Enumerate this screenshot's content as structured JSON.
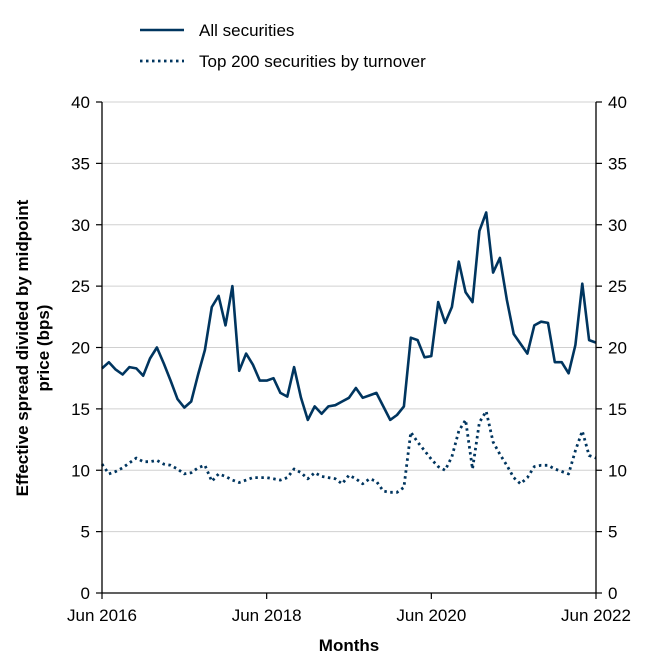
{
  "chart_data": {
    "type": "line",
    "title": "",
    "xlabel": "Months",
    "ylabel_lines": [
      "Effective spread divided by midpoint",
      "price (bps)"
    ],
    "x_ticks": [
      "Jun 2016",
      "Jun 2018",
      "Jun 2020",
      "Jun 2022"
    ],
    "x_range": [
      "Jun 2016",
      "Jun 2022"
    ],
    "ylim": [
      0,
      40
    ],
    "y_ticks": [
      "0",
      "5",
      "10",
      "15",
      "20",
      "25",
      "30",
      "35",
      "40"
    ],
    "grid": "horizontal",
    "legend_position": "top-left",
    "colors": {
      "series": "#00355f",
      "grid": "#d0d0d0",
      "axis": "#000000"
    },
    "series": [
      {
        "name": "All securities",
        "style": "solid",
        "values": [
          18.3,
          18.8,
          18.2,
          17.8,
          18.4,
          18.3,
          17.7,
          19.1,
          20.0,
          18.7,
          17.3,
          15.8,
          15.1,
          15.6,
          17.8,
          19.8,
          23.3,
          24.2,
          21.8,
          25.0,
          18.1,
          19.5,
          18.6,
          17.3,
          17.3,
          17.5,
          16.3,
          16.0,
          18.4,
          15.9,
          14.1,
          15.2,
          14.6,
          15.2,
          15.3,
          15.6,
          15.9,
          16.7,
          15.9,
          16.1,
          16.3,
          15.2,
          14.1,
          14.5,
          15.2,
          20.8,
          20.6,
          19.2,
          19.3,
          23.7,
          22.0,
          23.3,
          27.0,
          24.5,
          23.7,
          29.5,
          31.0,
          26.1,
          27.3,
          23.9,
          21.1,
          20.3,
          19.5,
          21.8,
          22.1,
          22.0,
          18.8,
          18.8,
          17.9,
          20.2,
          25.2,
          20.6,
          20.4
        ]
      },
      {
        "name": "Top 200 securities by turnover",
        "style": "dotted",
        "values": [
          10.5,
          9.7,
          9.9,
          10.2,
          10.6,
          11.0,
          10.7,
          10.7,
          10.8,
          10.5,
          10.4,
          10.1,
          9.7,
          9.8,
          10.2,
          10.4,
          9.1,
          9.7,
          9.5,
          9.2,
          9.0,
          9.2,
          9.4,
          9.4,
          9.4,
          9.3,
          9.2,
          9.4,
          10.1,
          9.8,
          9.3,
          9.8,
          9.5,
          9.4,
          9.3,
          8.9,
          9.6,
          9.3,
          8.9,
          9.3,
          9.1,
          8.3,
          8.2,
          8.2,
          8.6,
          13.1,
          12.3,
          11.6,
          10.9,
          10.3,
          10.0,
          11.1,
          13.2,
          14.1,
          10.1,
          13.9,
          14.8,
          12.3,
          11.3,
          10.4,
          9.4,
          8.9,
          9.4,
          10.3,
          10.4,
          10.4,
          10.1,
          9.9,
          9.7,
          11.6,
          13.2,
          11.2,
          11.0
        ]
      }
    ]
  }
}
